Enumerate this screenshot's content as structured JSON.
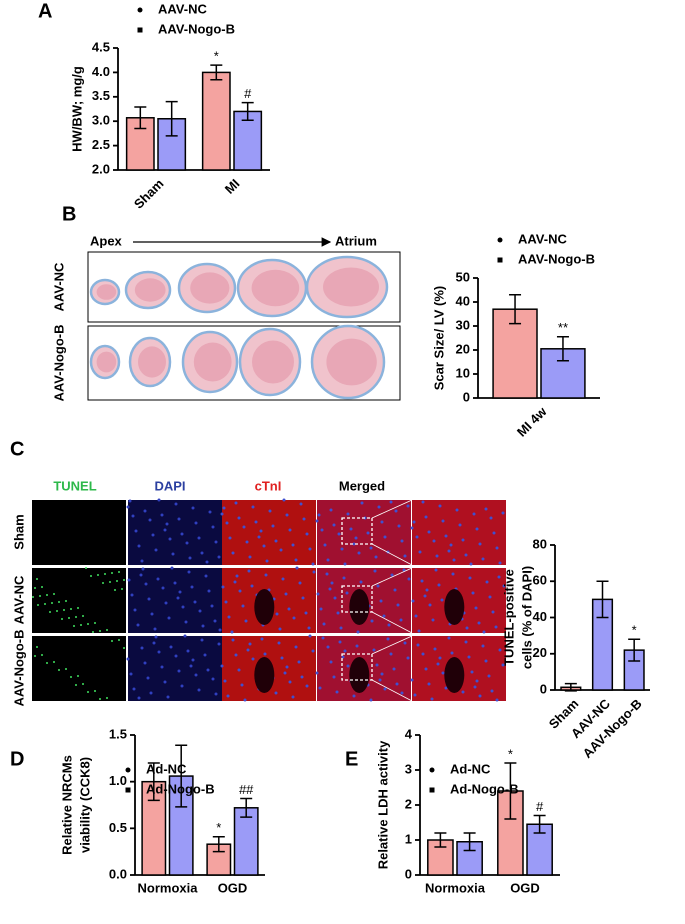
{
  "chart_data": [
    {
      "type": "bar",
      "panel": "A",
      "ylabel": [
        "HW/BW; mg/g"
      ],
      "categories": [
        "Sham",
        "MI"
      ],
      "series": [
        {
          "name": "AAV-NC",
          "color": "#f4a3a0",
          "values": [
            3.07,
            4.0
          ],
          "errors": [
            0.22,
            0.15
          ],
          "significance": [
            null,
            "*"
          ]
        },
        {
          "name": "AAV-Nogo-B",
          "color": "#9b9bf7",
          "values": [
            3.05,
            3.2
          ],
          "errors": [
            0.35,
            0.18
          ],
          "significance": [
            null,
            "#"
          ]
        }
      ],
      "ylim": [
        2.0,
        4.5
      ],
      "yticks": [
        {
          "value": 2,
          "label": "2.0"
        },
        {
          "value": 2.5,
          "label": "2.5"
        },
        {
          "value": 3,
          "label": "3.0"
        },
        {
          "value": 3.5,
          "label": "3.5"
        },
        {
          "value": 4,
          "label": "4.0"
        },
        {
          "value": 4.5,
          "label": "4.5"
        }
      ]
    },
    {
      "type": "bar",
      "panel": "B",
      "ylabel": [
        "Scar Size/ LV (%)"
      ],
      "categories": [
        "MI 4w"
      ],
      "series": [
        {
          "name": "AAV-NC",
          "color": "#f4a3a0",
          "values": [
            37
          ],
          "errors": [
            6
          ],
          "significance": [
            null
          ]
        },
        {
          "name": "AAV-Nogo-B",
          "color": "#9b9bf7",
          "values": [
            20.5
          ],
          "errors": [
            5
          ],
          "significance": [
            "**"
          ]
        }
      ],
      "ylim": [
        0,
        50
      ],
      "yticks": [
        0,
        10,
        20,
        30,
        40,
        50
      ]
    },
    {
      "type": "bar",
      "panel": "C",
      "ylabel": [
        "TUNEL-positive",
        "cells (% of DAPI)"
      ],
      "categories": [
        "Sham",
        "AAV-NC",
        "AAV-Nogo-B"
      ],
      "values": [
        1.5,
        50,
        22
      ],
      "errors": [
        2,
        10,
        6
      ],
      "colors": [
        "#f4a3a0",
        "#9b9bf7",
        "#9b9bf7"
      ],
      "significance": [
        null,
        null,
        "*"
      ],
      "ylim": [
        0,
        80
      ],
      "yticks": [
        0,
        20,
        40,
        60,
        80
      ]
    },
    {
      "type": "bar",
      "panel": "D",
      "ylabel": [
        "Relative NRCMs",
        "viability (CCK8)"
      ],
      "categories": [
        "Normoxia",
        "OGD"
      ],
      "series": [
        {
          "name": "Ad-NC",
          "color": "#f4a3a0",
          "values": [
            1.0,
            0.33
          ],
          "errors": [
            0.2,
            0.08
          ],
          "significance": [
            null,
            "*"
          ]
        },
        {
          "name": "Ad-Nogo-B",
          "color": "#9b9bf7",
          "values": [
            1.06,
            0.72
          ],
          "errors": [
            0.33,
            0.1
          ],
          "significance": [
            null,
            "##"
          ]
        }
      ],
      "ylim": [
        0,
        1.5
      ],
      "yticks": [
        {
          "value": 0,
          "label": "0.0"
        },
        {
          "value": 0.5,
          "label": "0.5"
        },
        {
          "value": 1,
          "label": "1.0"
        },
        {
          "value": 1.5,
          "label": "1.5"
        }
      ]
    },
    {
      "type": "bar",
      "panel": "E",
      "ylabel": [
        "Relative LDH activity"
      ],
      "categories": [
        "Normoxia",
        "OGD"
      ],
      "series": [
        {
          "name": "Ad-NC",
          "color": "#f4a3a0",
          "values": [
            1.0,
            2.4
          ],
          "errors": [
            0.2,
            0.8
          ],
          "significance": [
            null,
            "*"
          ]
        },
        {
          "name": "Ad-Nogo-B",
          "color": "#9b9bf7",
          "values": [
            0.95,
            1.45
          ],
          "errors": [
            0.25,
            0.25
          ],
          "significance": [
            null,
            "#"
          ]
        }
      ],
      "ylim": [
        0,
        4
      ],
      "yticks": [
        0,
        1,
        2,
        3,
        4
      ]
    }
  ],
  "micrographs": {
    "scar_sections": {
      "start": "Apex",
      "end": "Atrium",
      "rows": [
        "AAV-NC",
        "AAV-Nogo-B"
      ]
    },
    "staining": {
      "columns": [
        "TUNEL",
        "DAPI",
        "cTnI",
        "Merged"
      ],
      "rows": [
        "Sham",
        "AAV-NC",
        "AAV-Nogo-B"
      ]
    }
  }
}
